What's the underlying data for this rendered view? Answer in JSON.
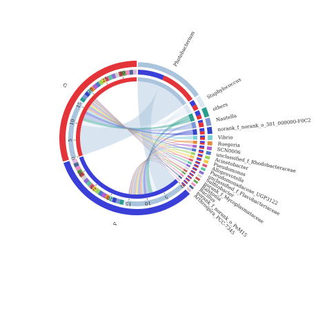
{
  "chart_data": {
    "type": "chord",
    "title": "",
    "samples": [
      {
        "name": "P",
        "total": 34.0
      },
      {
        "name": "G",
        "total": 32.0
      }
    ],
    "taxa": [
      {
        "name": "Photobacterium",
        "value": 16.0,
        "color": "#a9c4dc",
        "p_share": 0.42
      },
      {
        "name": "Staphylococcus",
        "value": 2.6,
        "color": "#d9e7f2",
        "p_share": 0.5
      },
      {
        "name": "others",
        "value": 2.2,
        "color": "#2a9d8f",
        "p_share": 0.55
      },
      {
        "name": "Nautella",
        "value": 1.8,
        "color": "#7e97d4",
        "p_share": 0.35
      },
      {
        "name": "norank_f_norank_o_301_000000-F0C2",
        "value": 1.6,
        "color": "#3346c7",
        "p_share": 0.5
      },
      {
        "name": "Vibrio",
        "value": 1.1,
        "color": "#7ecfd6",
        "p_share": 0.4
      },
      {
        "name": "Ruegeria",
        "value": 0.9,
        "color": "#e28a3a",
        "p_share": 0.5
      },
      {
        "name": "SCN0006",
        "value": 0.8,
        "color": "#b05fd1",
        "p_share": 0.6
      },
      {
        "name": "unclassified_f_Rhodobacteraceae",
        "value": 0.8,
        "color": "#4f77c9",
        "p_share": 0.5
      },
      {
        "name": "Acinetobacter",
        "value": 0.7,
        "color": "#9ad35c",
        "p_share": 0.5
      },
      {
        "name": "Pseudomonas",
        "value": 0.7,
        "color": "#f2c94c",
        "p_share": 0.5
      },
      {
        "name": "Alloprevotella",
        "value": 0.6,
        "color": "#e05a7a",
        "p_share": 0.5
      },
      {
        "name": "Pseudomonadaceae_UGP3122",
        "value": 0.6,
        "color": "#5cc2a3",
        "p_share": 0.5
      },
      {
        "name": "unclassified_f_Flavobacteriaceae",
        "value": 0.6,
        "color": "#8f6bd6",
        "p_share": 0.5
      },
      {
        "name": "Sulfitobacter",
        "value": 0.5,
        "color": "#d2d2d2",
        "p_share": 0.5
      },
      {
        "name": "norank_f_Mycoplasmataceae",
        "value": 0.5,
        "color": "#c94f4f",
        "p_share": 0.5
      },
      {
        "name": "Ralstonia",
        "value": 0.5,
        "color": "#6aa84f",
        "p_share": 0.5
      },
      {
        "name": "Bacillus",
        "value": 0.5,
        "color": "#f08cc3",
        "p_share": 0.5
      },
      {
        "name": "norank_f_norank_o_PeM15",
        "value": 0.5,
        "color": "#4b6b96",
        "p_share": 0.5
      },
      {
        "name": "Arthrospira_PCC-7345",
        "value": 0.5,
        "color": "#e3b7d9",
        "p_share": 0.5
      }
    ],
    "tick_labels": {
      "G": [
        "0",
        "5",
        "10",
        "15",
        "20",
        "25",
        "30"
      ],
      "P": [
        "0",
        "5",
        "10",
        "15",
        "20",
        "25",
        "30"
      ]
    }
  }
}
